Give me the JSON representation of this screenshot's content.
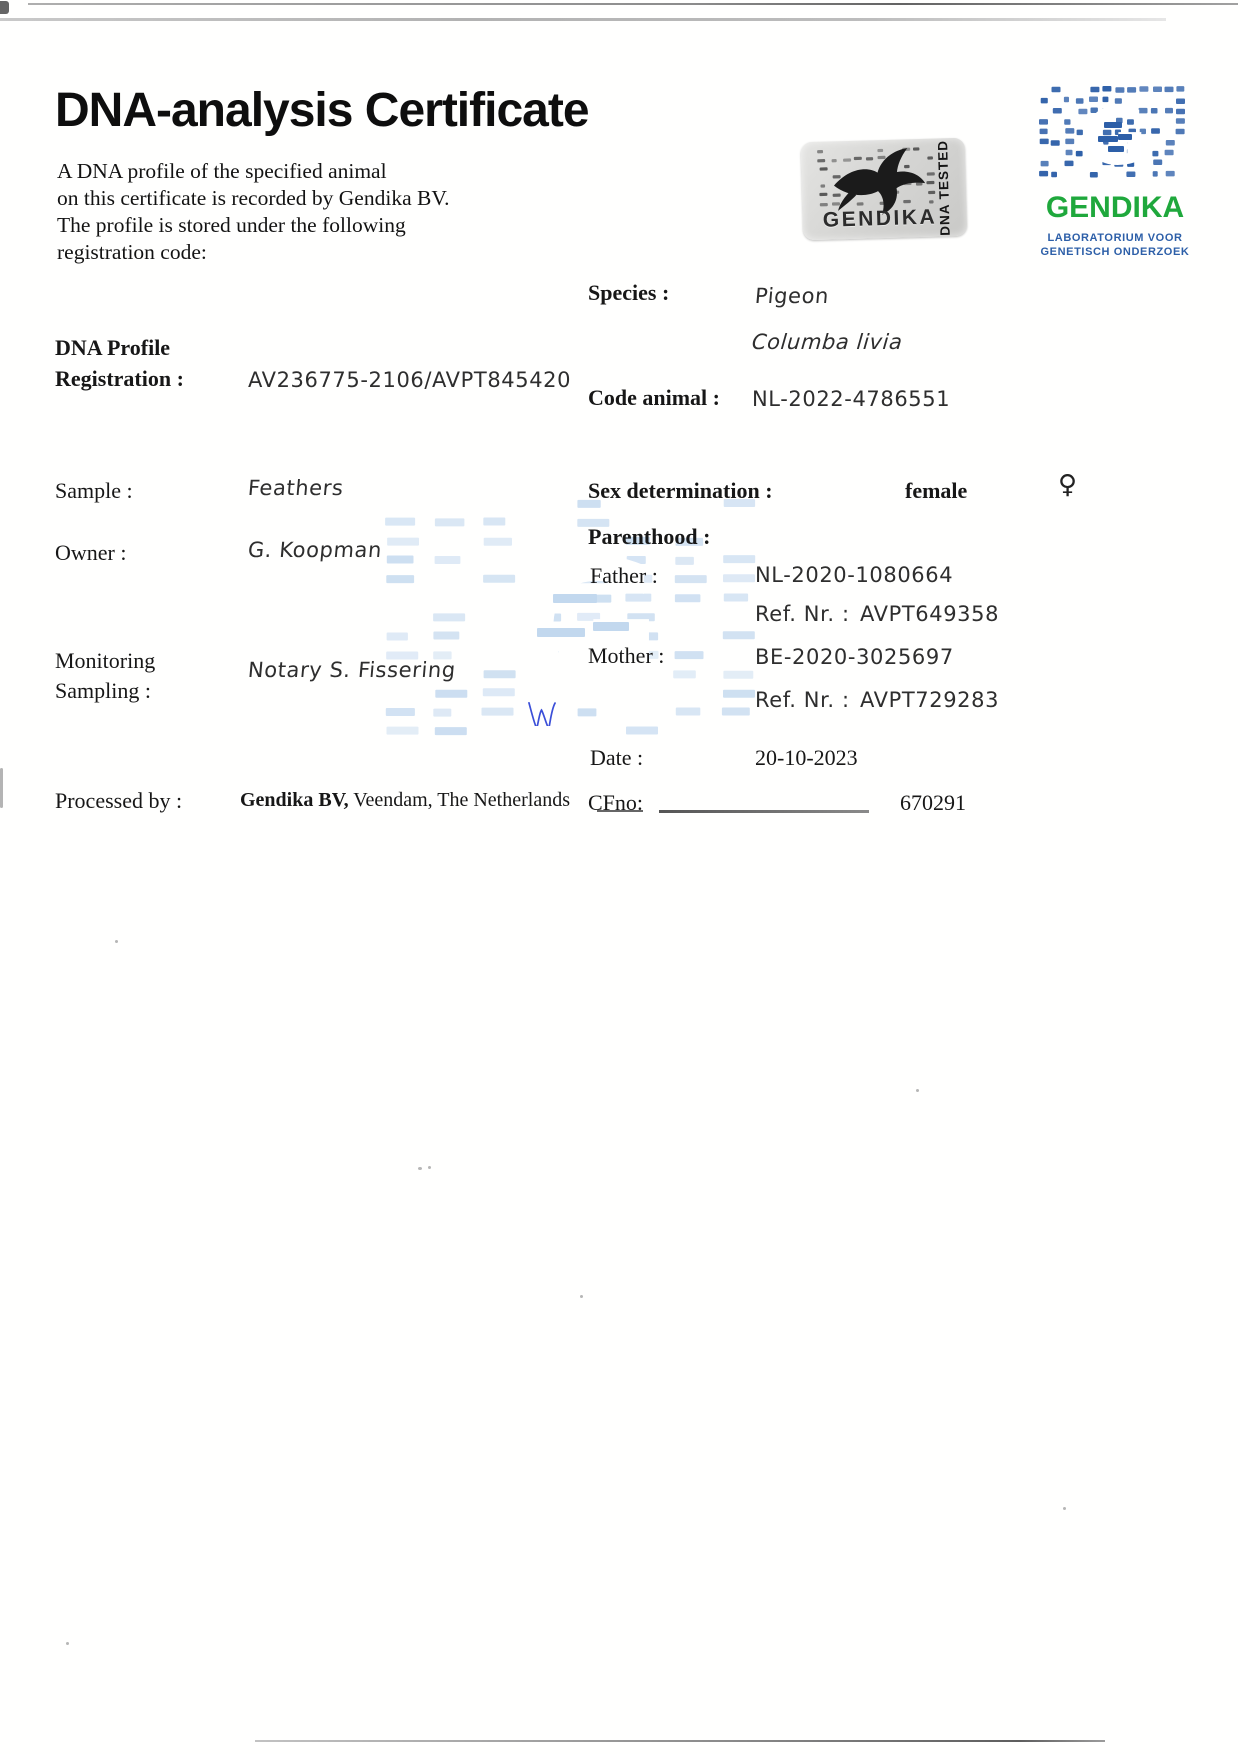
{
  "page": {
    "title": "DNA-analysis Certificate",
    "intro_lines": [
      "A DNA profile of the specified animal",
      "on this certificate is recorded by Gendika BV.",
      "The profile is stored under the following",
      "registration code:"
    ]
  },
  "fields": {
    "dna_profile_label_1": "DNA Profile",
    "dna_profile_label_2": "Registration :",
    "dna_profile_value": "AV236775-2106/AVPT845420",
    "sample_label": "Sample :",
    "sample_value": "Feathers",
    "owner_label": "Owner :",
    "owner_value": "G. Koopman",
    "monitoring_label_1": "Monitoring",
    "monitoring_label_2": "Sampling :",
    "monitoring_value": "Notary S. Fissering",
    "processed_label": "Processed by :",
    "processed_value_bold": "Gendika BV,",
    "processed_value_rest": " Veendam, The Netherlands",
    "species_label": "Species :",
    "species_value": "Pigeon",
    "species_latin": "Columba livia",
    "code_animal_label": "Code animal :",
    "code_animal_value": "NL-2022-4786551",
    "sex_label": "Sex determination :",
    "sex_value": "female",
    "sex_symbol": "♀",
    "parenthood_label": "Parenthood :",
    "father_label": "Father :",
    "father_value": "NL-2020-1080664",
    "father_ref_label": "Ref. Nr. :",
    "father_ref_value": "AVPT649358",
    "mother_label": "Mother :",
    "mother_value": "BE-2020-3025697",
    "mother_ref_label": "Ref. Nr. :",
    "mother_ref_value": "AVPT729283",
    "date_label": "Date :",
    "date_value": "20-10-2023",
    "cfno_label": "CFno:",
    "cfno_value": "670291"
  },
  "logo": {
    "name": "GENDIKA",
    "subtitle_1": "LABORATORIUM VOOR",
    "subtitle_2": "GENETISCH ONDERZOEK",
    "blue": "#2d5fa8",
    "green": "#1fa83c"
  },
  "sticker": {
    "brand": "GENDIKA",
    "tag": "DNA TESTED"
  },
  "colors": {
    "watermark": "#aecbe9",
    "signature": "#3b4fd8"
  }
}
